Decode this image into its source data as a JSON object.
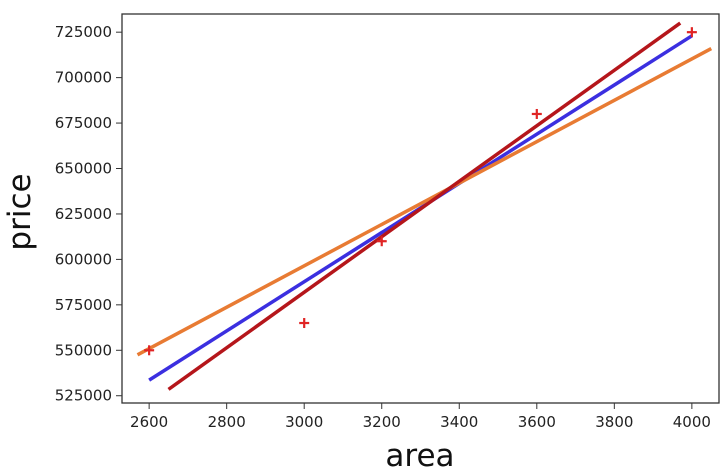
{
  "chart_data": {
    "type": "scatter",
    "title": "",
    "xlabel": "area",
    "ylabel": "price",
    "xlim": [
      2530,
      4070
    ],
    "ylim": [
      521000,
      735000
    ],
    "x_ticks": [
      2600,
      2800,
      3000,
      3200,
      3400,
      3600,
      3800,
      4000
    ],
    "y_ticks": [
      525000,
      550000,
      575000,
      600000,
      625000,
      650000,
      675000,
      700000,
      725000
    ],
    "grid": false,
    "legend": "none",
    "series": [
      {
        "type": "scatter",
        "marker": "+",
        "color": "#e02424",
        "points": [
          {
            "x": 2600,
            "y": 550000
          },
          {
            "x": 3000,
            "y": 565000
          },
          {
            "x": 3200,
            "y": 610000
          },
          {
            "x": 3600,
            "y": 680000
          },
          {
            "x": 4000,
            "y": 725000
          }
        ]
      },
      {
        "type": "line",
        "color": "#3b2fe0",
        "points": [
          {
            "x": 2600,
            "y": 533600
          },
          {
            "x": 4000,
            "y": 723000
          }
        ]
      },
      {
        "type": "line",
        "color": "#e87b33",
        "points": [
          {
            "x": 2570,
            "y": 547500
          },
          {
            "x": 4050,
            "y": 716000
          }
        ]
      },
      {
        "type": "line",
        "color": "#b5161b",
        "points": [
          {
            "x": 2650,
            "y": 528500
          },
          {
            "x": 3970,
            "y": 730000
          }
        ]
      }
    ]
  }
}
